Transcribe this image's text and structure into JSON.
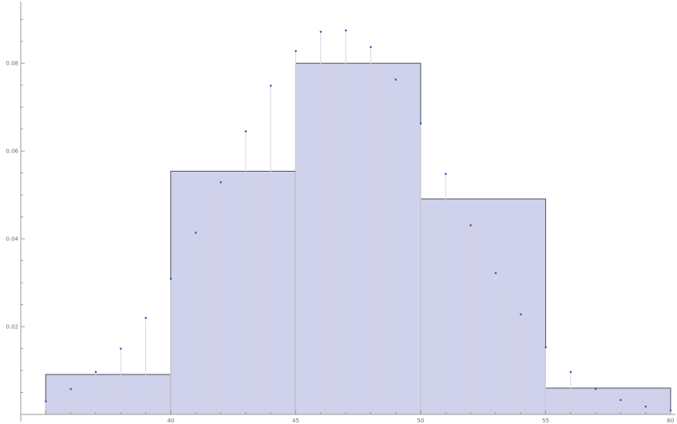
{
  "chart_data": {
    "type": "bar",
    "subtype": "histogram with overlaid discrete probability points",
    "title": "",
    "xlabel": "",
    "ylabel": "",
    "xlim": [
      34,
      60
    ],
    "ylim": [
      0,
      0.0935
    ],
    "x_ticks": [
      {
        "value": 40,
        "label": "40"
      },
      {
        "value": 45,
        "label": "45"
      },
      {
        "value": 50,
        "label": "50"
      },
      {
        "value": 55,
        "label": "55"
      },
      {
        "value": 60,
        "label": "60"
      }
    ],
    "y_ticks": [
      {
        "value": 0.02,
        "label": "0.02"
      },
      {
        "value": 0.04,
        "label": "0.04"
      },
      {
        "value": 0.06,
        "label": "0.06"
      },
      {
        "value": 0.08,
        "label": "0.08"
      }
    ],
    "grid": false,
    "legend": "none",
    "colors": {
      "bar_fill": "#cfd2ea",
      "bar_edge": "#4f4f60",
      "point": "#3c46c8",
      "stem": "#d7d7df",
      "axis": "#9a9a9a"
    },
    "bins": [
      {
        "x0": 35,
        "x1": 40,
        "value": 0.0091
      },
      {
        "x0": 40,
        "x1": 45,
        "value": 0.0554
      },
      {
        "x0": 45,
        "x1": 50,
        "value": 0.08
      },
      {
        "x0": 50,
        "x1": 55,
        "value": 0.0491
      },
      {
        "x0": 55,
        "x1": 60,
        "value": 0.006
      }
    ],
    "points": [
      {
        "x": 35,
        "y": 0.003
      },
      {
        "x": 36,
        "y": 0.0058
      },
      {
        "x": 37,
        "y": 0.0097
      },
      {
        "x": 38,
        "y": 0.015
      },
      {
        "x": 39,
        "y": 0.022
      },
      {
        "x": 40,
        "y": 0.0309
      },
      {
        "x": 41,
        "y": 0.0414
      },
      {
        "x": 42,
        "y": 0.0529
      },
      {
        "x": 43,
        "y": 0.0645
      },
      {
        "x": 44,
        "y": 0.0749
      },
      {
        "x": 45,
        "y": 0.0828
      },
      {
        "x": 46,
        "y": 0.0872
      },
      {
        "x": 47,
        "y": 0.0875
      },
      {
        "x": 48,
        "y": 0.0837
      },
      {
        "x": 49,
        "y": 0.0763
      },
      {
        "x": 50,
        "y": 0.0663
      },
      {
        "x": 51,
        "y": 0.0548
      },
      {
        "x": 52,
        "y": 0.0431
      },
      {
        "x": 53,
        "y": 0.0322
      },
      {
        "x": 54,
        "y": 0.0228
      },
      {
        "x": 55,
        "y": 0.0153
      },
      {
        "x": 56,
        "y": 0.0097
      },
      {
        "x": 57,
        "y": 0.0058
      },
      {
        "x": 58,
        "y": 0.0033
      },
      {
        "x": 59,
        "y": 0.0018
      },
      {
        "x": 60,
        "y": 0.0009
      }
    ]
  }
}
